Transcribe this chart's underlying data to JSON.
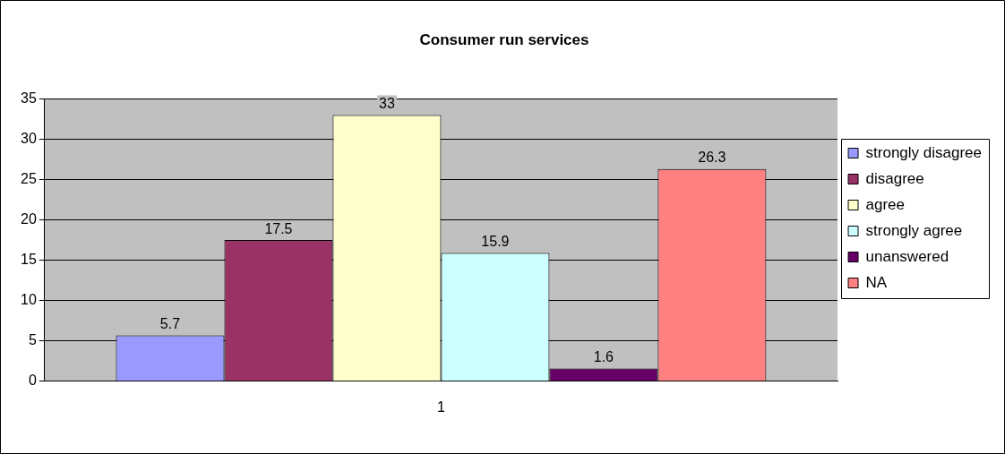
{
  "chart_data": {
    "type": "bar",
    "title": "Consumer run services",
    "categories": [
      "1"
    ],
    "series": [
      {
        "name": "strongly disagree",
        "color": "#9999ff",
        "values": [
          5.7
        ]
      },
      {
        "name": "disagree",
        "color": "#993366",
        "values": [
          17.5
        ]
      },
      {
        "name": "agree",
        "color": "#ffffcc",
        "values": [
          33
        ]
      },
      {
        "name": "strongly agree",
        "color": "#ccffff",
        "values": [
          15.9
        ]
      },
      {
        "name": "unanswered",
        "color": "#660066",
        "values": [
          1.6
        ]
      },
      {
        "name": "NA",
        "color": "#ff8080",
        "values": [
          26.3
        ]
      }
    ],
    "ylim": [
      0,
      35
    ],
    "yticks": [
      0,
      5,
      10,
      15,
      20,
      25,
      30,
      35
    ],
    "grid": "y",
    "legend": "right",
    "data_labels": true
  }
}
